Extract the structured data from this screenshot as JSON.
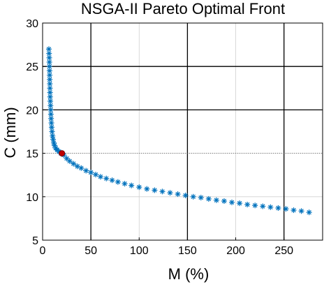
{
  "chart_data": {
    "type": "scatter",
    "title": "NSGA-II Pareto Optimal Front",
    "xlabel": "M (%)",
    "ylabel": "C (mm)",
    "xlim": [
      0,
      290
    ],
    "ylim": [
      5,
      30
    ],
    "xticks": [
      "0",
      "50",
      "100",
      "150",
      "200",
      "250"
    ],
    "yticks": [
      "5",
      "10",
      "15",
      "20",
      "25",
      "30"
    ],
    "grid": true,
    "series": [
      {
        "marker": "asterisk",
        "color": "#0072BD",
        "points": [
          [
            6.5,
            27.0
          ],
          [
            6.7,
            26.5
          ],
          [
            6.9,
            26.0
          ],
          [
            7.0,
            25.5
          ],
          [
            7.1,
            25.0
          ],
          [
            7.2,
            24.5
          ],
          [
            7.3,
            24.0
          ],
          [
            7.4,
            23.5
          ],
          [
            7.5,
            23.0
          ],
          [
            7.6,
            22.5
          ],
          [
            7.7,
            22.0
          ],
          [
            7.8,
            21.5
          ],
          [
            8.0,
            21.0
          ],
          [
            8.2,
            20.5
          ],
          [
            8.4,
            20.0
          ],
          [
            8.6,
            19.5
          ],
          [
            8.8,
            19.0
          ],
          [
            9.1,
            18.5
          ],
          [
            9.4,
            18.0
          ],
          [
            9.8,
            17.5
          ],
          [
            10.3,
            17.0
          ],
          [
            10.9,
            16.6
          ],
          [
            11.6,
            16.2
          ],
          [
            12.4,
            15.9
          ],
          [
            13.5,
            15.6
          ],
          [
            15.0,
            15.4
          ],
          [
            17.0,
            15.2
          ],
          [
            19.0,
            15.0
          ],
          [
            22.0,
            14.8
          ],
          [
            25.0,
            14.4
          ],
          [
            28.0,
            14.1
          ],
          [
            32.0,
            13.8
          ],
          [
            36.0,
            13.5
          ],
          [
            40.0,
            13.3
          ],
          [
            45.0,
            13.0
          ],
          [
            50.0,
            12.8
          ],
          [
            55.0,
            12.55
          ],
          [
            60.0,
            12.3
          ],
          [
            66.0,
            12.1
          ],
          [
            72.0,
            11.9
          ],
          [
            78.0,
            11.7
          ],
          [
            85.0,
            11.5
          ],
          [
            92.0,
            11.3
          ],
          [
            100.0,
            11.1
          ],
          [
            108.0,
            10.9
          ],
          [
            116.0,
            10.75
          ],
          [
            124.0,
            10.6
          ],
          [
            132.0,
            10.45
          ],
          [
            140.0,
            10.3
          ],
          [
            148.0,
            10.15
          ],
          [
            156.0,
            10.0
          ],
          [
            164.0,
            9.9
          ],
          [
            172.0,
            9.75
          ],
          [
            180.0,
            9.6
          ],
          [
            188.0,
            9.5
          ],
          [
            196.0,
            9.35
          ],
          [
            204.0,
            9.25
          ],
          [
            212.0,
            9.1
          ],
          [
            220.0,
            9.0
          ],
          [
            228.0,
            8.9
          ],
          [
            236.0,
            8.8
          ],
          [
            244.0,
            8.7
          ],
          [
            252.0,
            8.6
          ],
          [
            260.0,
            8.45
          ],
          [
            268.0,
            8.35
          ],
          [
            276.0,
            8.2
          ]
        ]
      },
      {
        "marker": "dot",
        "color": "#C00000",
        "points": [
          [
            20.0,
            15.0
          ]
        ]
      }
    ],
    "reference_lines": {
      "vertical": [
        50,
        150,
        250
      ],
      "horizontal": [
        20,
        25
      ],
      "dotted_horizontal": [
        15
      ]
    }
  }
}
